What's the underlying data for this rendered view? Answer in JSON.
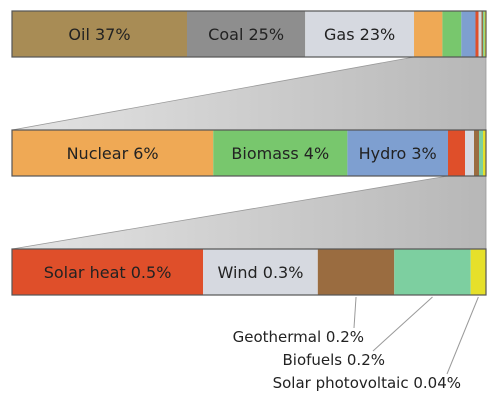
{
  "chart_data": {
    "type": "bar",
    "subtype": "stacked-drilldown",
    "unit": "%",
    "colors": {
      "oil": "#a88c55",
      "coal": "#8e8e8e",
      "gas": "#d6d9e0",
      "nuclear": "#efa955",
      "biomass": "#78c76d",
      "hydro": "#7e9fd0",
      "solar_heat": "#df4f2a",
      "wind": "#d6d9e0",
      "geothermal": "#9a6c40",
      "biofuels": "#7dcfa0",
      "solar_pv": "#e6e02a",
      "zoom_fill": "#b7b7b7",
      "frame": "#555555"
    },
    "bars": [
      {
        "id": "primary",
        "segments": [
          {
            "key": "oil",
            "label": "Oil 37%",
            "value": 37,
            "color": "#a88c55"
          },
          {
            "key": "coal",
            "label": "Coal 25%",
            "value": 25,
            "color": "#8e8e8e"
          },
          {
            "key": "gas",
            "label": "Gas 23%",
            "value": 23,
            "color": "#d6d9e0"
          },
          {
            "key": "nuclear",
            "label": "",
            "value": 6,
            "color": "#efa955"
          },
          {
            "key": "biomass",
            "label": "",
            "value": 4,
            "color": "#78c76d"
          },
          {
            "key": "hydro",
            "label": "",
            "value": 3,
            "color": "#7e9fd0"
          },
          {
            "key": "solar_heat",
            "label": "",
            "value": 0.5,
            "color": "#df4f2a"
          },
          {
            "key": "wind",
            "label": "",
            "value": 0.3,
            "color": "#d6d9e0"
          },
          {
            "key": "geothermal",
            "label": "",
            "value": 0.2,
            "color": "#9a6c40"
          },
          {
            "key": "biofuels",
            "label": "",
            "value": 0.2,
            "color": "#7dcfa0"
          },
          {
            "key": "solar_pv",
            "label": "",
            "value": 0.04,
            "color": "#e6e02a"
          }
        ]
      },
      {
        "id": "low-carbon",
        "segments": [
          {
            "key": "nuclear",
            "label": "Nuclear 6%",
            "value": 6,
            "color": "#efa955"
          },
          {
            "key": "biomass",
            "label": "Biomass 4%",
            "value": 4,
            "color": "#78c76d"
          },
          {
            "key": "hydro",
            "label": "Hydro 3%",
            "value": 3,
            "color": "#7e9fd0"
          },
          {
            "key": "solar_heat",
            "label": "",
            "value": 0.5,
            "color": "#df4f2a"
          },
          {
            "key": "wind",
            "label": "",
            "value": 0.3,
            "color": "#d6d9e0"
          },
          {
            "key": "geothermal",
            "label": "",
            "value": 0.2,
            "color": "#9a6c40"
          },
          {
            "key": "biofuels",
            "label": "",
            "value": 0.2,
            "color": "#7dcfa0"
          },
          {
            "key": "solar_pv",
            "label": "",
            "value": 0.04,
            "color": "#e6e02a"
          }
        ]
      },
      {
        "id": "other-renewables",
        "segments": [
          {
            "key": "solar_heat",
            "label": "Solar heat 0.5%",
            "value": 0.5,
            "color": "#df4f2a"
          },
          {
            "key": "wind",
            "label": "Wind 0.3%",
            "value": 0.3,
            "color": "#d6d9e0"
          },
          {
            "key": "geothermal",
            "label": "",
            "value": 0.2,
            "color": "#9a6c40"
          },
          {
            "key": "biofuels",
            "label": "",
            "value": 0.2,
            "color": "#7dcfa0"
          },
          {
            "key": "solar_pv",
            "label": "",
            "value": 0.04,
            "color": "#e6e02a"
          }
        ]
      }
    ],
    "zoom_links": [
      {
        "from_bar": "primary",
        "from_segment": "nuclear",
        "to_bar": "low-carbon"
      },
      {
        "from_bar": "low-carbon",
        "from_segment": "solar_heat",
        "to_bar": "other-renewables"
      }
    ],
    "callouts": [
      {
        "segment": "geothermal",
        "text": "Geothermal 0.2%"
      },
      {
        "segment": "biofuels",
        "text": "Biofuels 0.2%"
      },
      {
        "segment": "solar_pv",
        "text": "Solar photovoltaic 0.04%"
      }
    ]
  }
}
